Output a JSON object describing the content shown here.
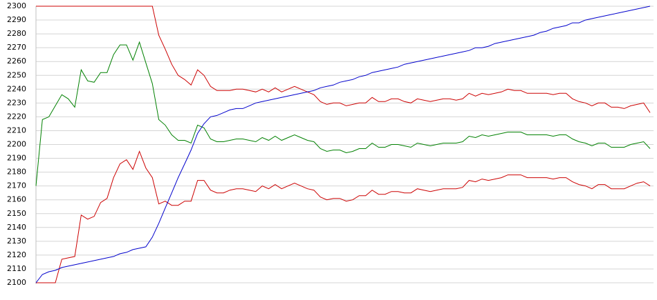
{
  "chart_data": {
    "type": "line",
    "ylim": [
      2100,
      2300
    ],
    "yticks": [
      2100,
      2110,
      2120,
      2130,
      2140,
      2150,
      2160,
      2170,
      2180,
      2190,
      2200,
      2210,
      2220,
      2230,
      2240,
      2250,
      2260,
      2270,
      2280,
      2290,
      2300
    ],
    "grid": true,
    "series": [
      {
        "color": "#cc0000",
        "values": [
          2300,
          2300,
          2300,
          2300,
          2300,
          2300,
          2300,
          2300,
          2300,
          2300,
          2300,
          2300,
          2300,
          2300,
          2300,
          2300,
          2300,
          2300,
          2300,
          2279,
          2269,
          2258,
          2250,
          2247,
          2243,
          2254,
          2250,
          2242,
          2239,
          2239,
          2239,
          2240,
          2240,
          2239,
          2238,
          2240,
          2238,
          2241,
          2238,
          2240,
          2242,
          2240,
          2238,
          2236,
          2231,
          2229,
          2230,
          2230,
          2228,
          2229,
          2230,
          2230,
          2234,
          2231,
          2231,
          2233,
          2233,
          2231,
          2230,
          2233,
          2232,
          2231,
          2232,
          2233,
          2233,
          2232,
          2233,
          2237,
          2235,
          2237,
          2236,
          2237,
          2238,
          2240,
          2239,
          2239,
          2237,
          2237,
          2237,
          2237,
          2236,
          2237,
          2237,
          2233,
          2231,
          2230,
          2228,
          2230,
          2230,
          2227,
          2227,
          2226,
          2228,
          2229,
          2230,
          2223
        ]
      },
      {
        "color": "#008000",
        "values": [
          2170,
          2218,
          2220,
          2228,
          2236,
          2233,
          2227,
          2254,
          2246,
          2245,
          2252,
          2252,
          2265,
          2272,
          2272,
          2261,
          2274,
          2259,
          2244,
          2218,
          2214,
          2207,
          2203,
          2203,
          2201,
          2214,
          2212,
          2204,
          2202,
          2202,
          2203,
          2204,
          2204,
          2203,
          2202,
          2205,
          2203,
          2206,
          2203,
          2205,
          2207,
          2205,
          2203,
          2202,
          2197,
          2195,
          2196,
          2196,
          2194,
          2195,
          2197,
          2197,
          2201,
          2198,
          2198,
          2200,
          2200,
          2199,
          2198,
          2201,
          2200,
          2199,
          2200,
          2201,
          2201,
          2201,
          2202,
          2206,
          2205,
          2207,
          2206,
          2207,
          2208,
          2209,
          2209,
          2209,
          2207,
          2207,
          2207,
          2207,
          2206,
          2207,
          2207,
          2204,
          2202,
          2201,
          2199,
          2201,
          2201,
          2198,
          2198,
          2198,
          2200,
          2201,
          2202,
          2197
        ]
      },
      {
        "color": "#cc0000",
        "values": [
          2100,
          2100,
          2100,
          2100,
          2117,
          2118,
          2119,
          2149,
          2146,
          2148,
          2158,
          2161,
          2176,
          2186,
          2189,
          2182,
          2195,
          2183,
          2176,
          2157,
          2159,
          2156,
          2156,
          2159,
          2159,
          2174,
          2174,
          2167,
          2165,
          2165,
          2167,
          2168,
          2168,
          2167,
          2166,
          2170,
          2168,
          2171,
          2168,
          2170,
          2172,
          2170,
          2168,
          2167,
          2162,
          2160,
          2161,
          2161,
          2159,
          2160,
          2163,
          2163,
          2167,
          2164,
          2164,
          2166,
          2166,
          2165,
          2165,
          2168,
          2167,
          2166,
          2167,
          2168,
          2168,
          2168,
          2169,
          2174,
          2173,
          2175,
          2174,
          2175,
          2176,
          2178,
          2178,
          2178,
          2176,
          2176,
          2176,
          2176,
          2175,
          2176,
          2176,
          2173,
          2171,
          2170,
          2168,
          2171,
          2171,
          2168,
          2168,
          2168,
          2170,
          2172,
          2173,
          2170
        ]
      },
      {
        "color": "#0000cc",
        "values": [
          2100,
          2106,
          2108,
          2109,
          2111,
          2112,
          2113,
          2114,
          2115,
          2116,
          2117,
          2118,
          2119,
          2121,
          2122,
          2124,
          2125,
          2126,
          2133,
          2143,
          2154,
          2165,
          2176,
          2186,
          2196,
          2208,
          2215,
          2220,
          2221,
          2223,
          2225,
          2226,
          2226,
          2228,
          2230,
          2231,
          2232,
          2233,
          2234,
          2235,
          2236,
          2237,
          2238,
          2239,
          2241,
          2242,
          2243,
          2245,
          2246,
          2247,
          2249,
          2250,
          2252,
          2253,
          2254,
          2255,
          2256,
          2258,
          2259,
          2260,
          2261,
          2262,
          2263,
          2264,
          2265,
          2266,
          2267,
          2268,
          2270,
          2270,
          2271,
          2273,
          2274,
          2275,
          2276,
          2277,
          2278,
          2279,
          2281,
          2282,
          2284,
          2285,
          2286,
          2288,
          2288,
          2290,
          2291,
          2292,
          2293,
          2294,
          2295,
          2296,
          2297,
          2298,
          2299,
          2300
        ]
      }
    ]
  }
}
